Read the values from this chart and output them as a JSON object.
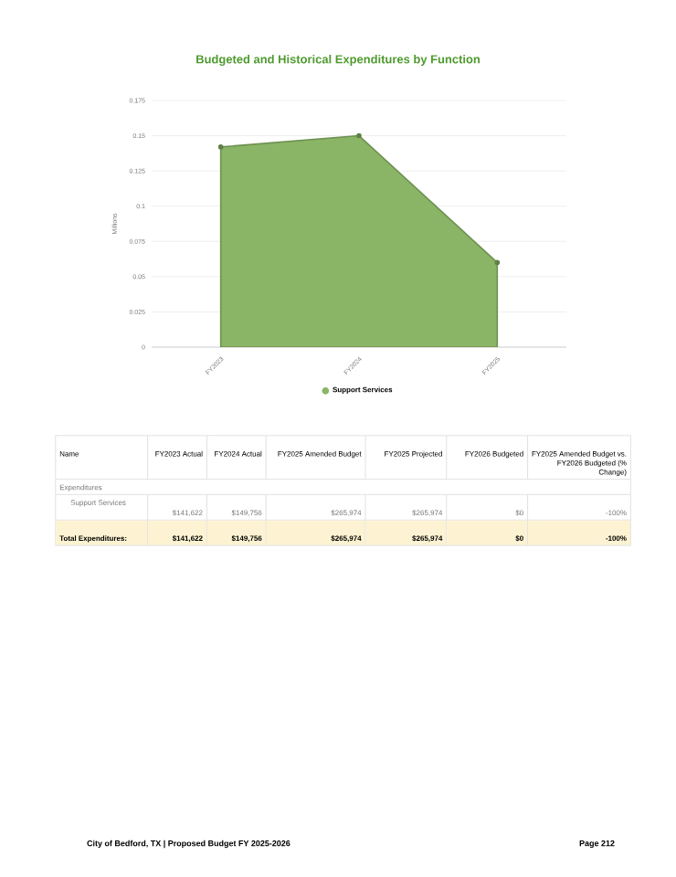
{
  "chart_data": {
    "type": "area",
    "title": "Budgeted and Historical Expenditures by Function",
    "ylabel": "Millions",
    "categories": [
      "FY2023",
      "FY2024",
      "FY2025"
    ],
    "series": [
      {
        "name": "Support Services",
        "color": "#8ab566",
        "values": [
          0.142,
          0.15,
          0.06
        ]
      }
    ],
    "ylim": [
      0,
      0.175
    ],
    "yticks": [
      0,
      0.025,
      0.05,
      0.075,
      0.1,
      0.125,
      0.15,
      0.175
    ],
    "grid": "y",
    "legend": "bottom",
    "marker": "circle",
    "annotations": [
      "Name",
      "FY2023 Actual",
      "FY2024 Actual",
      "FY2025 Amended Budget",
      "FY2025 Projected",
      "FY2026 Budgeted",
      "FY2025 Amended Budget vs. FY2026 Budgeted (% Change)",
      "Expenditures",
      "Support Services",
      "$141,622",
      "$149,756",
      "$265,974",
      "$265,974",
      "$0",
      "-100%",
      "Total Expenditures:",
      "$141,622",
      "$149,756",
      "$265,974",
      "$265,974",
      "$0",
      "-100%",
      "City of Bedford, TX | Proposed Budget FY 2025-2026",
      "Page 212"
    ]
  }
}
